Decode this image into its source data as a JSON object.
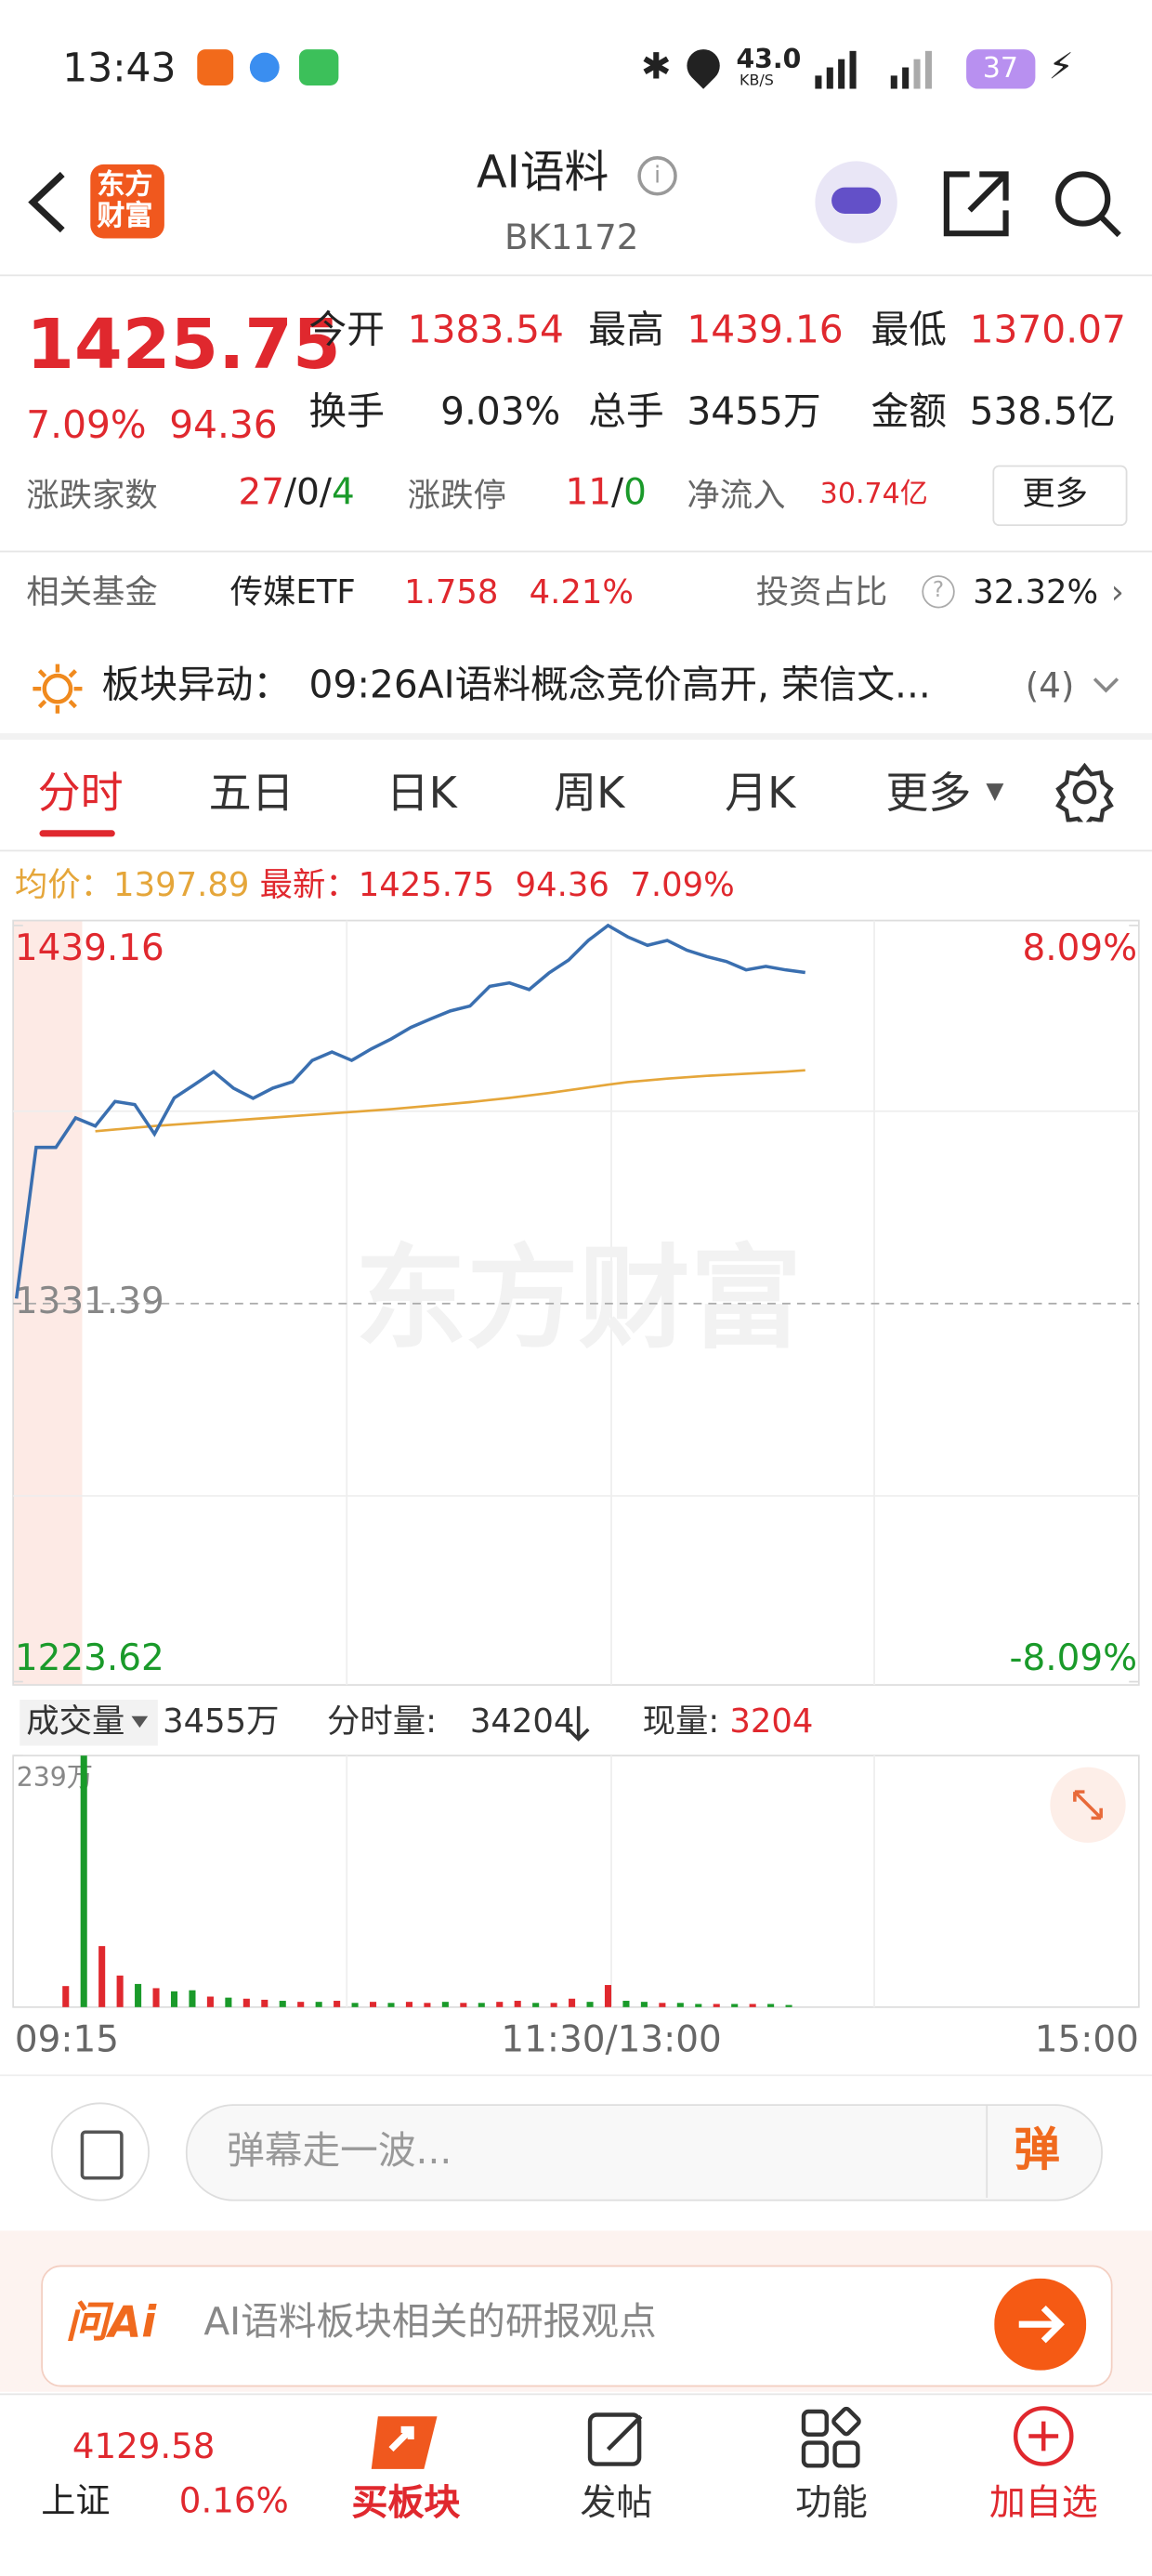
{
  "status_bar": {
    "time": "13:43",
    "net_speed": "43.0",
    "net_unit": "KB/S",
    "battery": "37"
  },
  "header": {
    "logo": [
      "东方",
      "财富"
    ],
    "title": "AI语料",
    "code": "BK1172"
  },
  "quote": {
    "price": "1425.75",
    "change_pct": "7.09%",
    "change": "94.36",
    "stats": [
      {
        "label": "今开",
        "value": "1383.54"
      },
      {
        "label": "最高",
        "value": "1439.16"
      },
      {
        "label": "最低",
        "value": "1370.07"
      },
      {
        "label": "换手",
        "value": "9.03%"
      },
      {
        "label": "总手",
        "value": "3455万"
      },
      {
        "label": "金额",
        "value": "538.5亿"
      }
    ],
    "breadth": {
      "label": "涨跌家数",
      "up": "27",
      "flat": "0",
      "down": "4"
    },
    "limits": {
      "label": "涨跌停",
      "up": "11",
      "down": "0"
    },
    "net_inflow": {
      "label": "净流入",
      "value": "30.74亿"
    },
    "more": "更多"
  },
  "fund": {
    "label": "相关基金",
    "name": "传媒ETF",
    "price": "1.758",
    "pct": "4.21%",
    "ratio_label": "投资占比",
    "ratio": "32.32%"
  },
  "alert": {
    "label": "板块异动：",
    "text": "09:26AI语料概念竞价高开, 荣信文...",
    "count": "(4)"
  },
  "tabs": [
    "分时",
    "五日",
    "日K",
    "周K",
    "月K",
    "更多"
  ],
  "info": {
    "avg_label": "均价：",
    "avg": "1397.89",
    "latest_label": "最新：",
    "latest": "1425.75",
    "change": "94.36",
    "pct": "7.09%"
  },
  "chart_data": [
    {
      "type": "line",
      "watermark": "东方财富",
      "series": [
        {
          "name": "最新",
          "color": "#3a6fb0",
          "values": [
            1332.8,
            1375.9,
            1375.9,
            1384.3,
            1382.0,
            1389.0,
            1388.1,
            1379.7,
            1390.0,
            1393.7,
            1397.5,
            1392.8,
            1389.9,
            1392.8,
            1394.6,
            1400.7,
            1403.1,
            1400.7,
            1404.0,
            1406.8,
            1410.1,
            1412.5,
            1414.8,
            1416.2,
            1421.8,
            1422.8,
            1420.9,
            1425.6,
            1429.3,
            1434.9,
            1439.16,
            1435.9,
            1433.5,
            1434.9,
            1432.1,
            1430.3,
            1428.9,
            1426.5,
            1427.5,
            1426.5,
            1425.75
          ]
        },
        {
          "name": "均价",
          "color": "#e5a63a",
          "values": [
            null,
            null,
            null,
            null,
            1380.5,
            1381.0,
            1381.5,
            1382.0,
            1382.4,
            1382.8,
            1383.2,
            1383.6,
            1384.0,
            1384.4,
            1384.8,
            1385.2,
            1385.6,
            1386.0,
            1386.4,
            1386.8,
            1387.3,
            1387.8,
            1388.3,
            1388.8,
            1389.4,
            1390.0,
            1390.7,
            1391.4,
            1392.2,
            1393.0,
            1393.8,
            1394.5,
            1395.0,
            1395.5,
            1395.9,
            1396.3,
            1396.6,
            1396.9,
            1397.2,
            1397.5,
            1397.89
          ]
        }
      ],
      "ylim": [
        1223.62,
        1439.16
      ],
      "yticks": [
        1223.62,
        1331.39,
        1439.16
      ],
      "y2lim": [
        -8.09,
        8.09
      ],
      "y2ticks": [
        {
          "value": 8.09,
          "label": "8.09%"
        },
        {
          "value": -8.09,
          "label": "-8.09%"
        }
      ],
      "x_labels": [
        "09:15",
        "11:30/13:00",
        "15:00"
      ]
    },
    {
      "type": "bar",
      "title": "成交量",
      "total": "3455万",
      "tick_volume_label": "分时量:",
      "tick_volume": "34204",
      "current_label": "现量:",
      "current": "3204",
      "values": [
        20,
        239,
        58,
        30,
        22,
        18,
        15,
        16,
        10,
        9,
        8,
        7,
        6,
        5,
        5,
        6,
        4,
        5,
        4,
        5,
        4,
        5,
        4,
        4,
        5,
        6,
        4,
        4,
        8,
        5,
        21,
        6,
        5,
        4,
        4,
        3,
        3,
        3,
        3,
        3,
        2
      ],
      "colors": [
        "#e0282e",
        "#1a9a2a",
        "#e0282e",
        "#e0282e",
        "#1a9a2a",
        "#e0282e",
        "#1a9a2a",
        "#1a9a2a",
        "#e0282e",
        "#1a9a2a",
        "#e0282e",
        "#e0282e",
        "#1a9a2a",
        "#e0282e",
        "#1a9a2a",
        "#e0282e",
        "#1a9a2a",
        "#e0282e",
        "#1a9a2a",
        "#e0282e",
        "#e0282e",
        "#1a9a2a",
        "#e0282e",
        "#1a9a2a",
        "#e0282e",
        "#e0282e",
        "#1a9a2a",
        "#e0282e",
        "#e0282e",
        "#1a9a2a",
        "#e0282e",
        "#1a9a2a",
        "#1a9a2a",
        "#e0282e",
        "#1a9a2a",
        "#1a9a2a",
        "#e0282e",
        "#1a9a2a",
        "#e0282e",
        "#1a9a2a",
        "#1a9a2a"
      ],
      "ylim": [
        0,
        239
      ],
      "yticks": [
        {
          "value": 239,
          "label": "239万"
        }
      ]
    }
  ],
  "danmaku": {
    "placeholder": "弹幕走一波...",
    "button": "弹"
  },
  "ask_ai": {
    "logo": "问Ai",
    "text": "AI语料板块相关的研报观点"
  },
  "nav": {
    "index_value": "4129.58",
    "index_name": "上证",
    "index_pct": "0.16%",
    "items": [
      "买板块",
      "发帖",
      "功能",
      "加自选"
    ]
  }
}
